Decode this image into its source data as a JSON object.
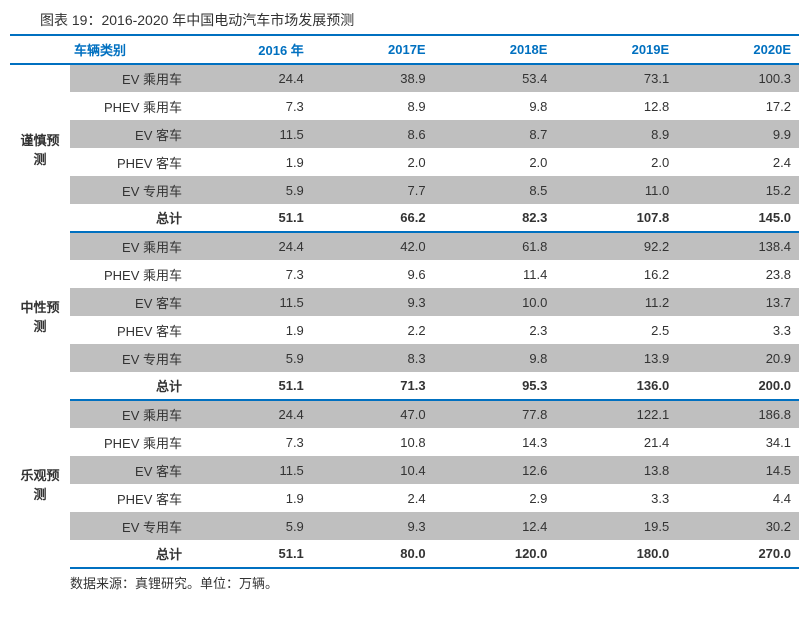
{
  "title": "图表 19：2016-2020 年中国电动汽车市场发展预测",
  "source": "数据来源：真锂研究。单位：万辆。",
  "header_color": "#0070c0",
  "alt_row_color": "#bfbfbf",
  "columns": [
    "车辆类别",
    "2016 年",
    "2017E",
    "2018E",
    "2019E",
    "2020E"
  ],
  "sections": [
    {
      "name": "谨慎预测",
      "rows": [
        {
          "label": "EV 乘用车",
          "values": [
            "24.4",
            "38.9",
            "53.4",
            "73.1",
            "100.3"
          ],
          "alt": true
        },
        {
          "label": "PHEV 乘用车",
          "values": [
            "7.3",
            "8.9",
            "9.8",
            "12.8",
            "17.2"
          ],
          "alt": false
        },
        {
          "label": "EV 客车",
          "values": [
            "11.5",
            "8.6",
            "8.7",
            "8.9",
            "9.9"
          ],
          "alt": true
        },
        {
          "label": "PHEV 客车",
          "values": [
            "1.9",
            "2.0",
            "2.0",
            "2.0",
            "2.4"
          ],
          "alt": false
        },
        {
          "label": "EV 专用车",
          "values": [
            "5.9",
            "7.7",
            "8.5",
            "11.0",
            "15.2"
          ],
          "alt": true
        }
      ],
      "total": {
        "label": "总计",
        "values": [
          "51.1",
          "66.2",
          "82.3",
          "107.8",
          "145.0"
        ]
      }
    },
    {
      "name": "中性预测",
      "rows": [
        {
          "label": "EV 乘用车",
          "values": [
            "24.4",
            "42.0",
            "61.8",
            "92.2",
            "138.4"
          ],
          "alt": true
        },
        {
          "label": "PHEV 乘用车",
          "values": [
            "7.3",
            "9.6",
            "11.4",
            "16.2",
            "23.8"
          ],
          "alt": false
        },
        {
          "label": "EV 客车",
          "values": [
            "11.5",
            "9.3",
            "10.0",
            "11.2",
            "13.7"
          ],
          "alt": true
        },
        {
          "label": "PHEV 客车",
          "values": [
            "1.9",
            "2.2",
            "2.3",
            "2.5",
            "3.3"
          ],
          "alt": false
        },
        {
          "label": "EV 专用车",
          "values": [
            "5.9",
            "8.3",
            "9.8",
            "13.9",
            "20.9"
          ],
          "alt": true
        }
      ],
      "total": {
        "label": "总计",
        "values": [
          "51.1",
          "71.3",
          "95.3",
          "136.0",
          "200.0"
        ]
      }
    },
    {
      "name": "乐观预测",
      "rows": [
        {
          "label": "EV 乘用车",
          "values": [
            "24.4",
            "47.0",
            "77.8",
            "122.1",
            "186.8"
          ],
          "alt": true
        },
        {
          "label": "PHEV 乘用车",
          "values": [
            "7.3",
            "10.8",
            "14.3",
            "21.4",
            "34.1"
          ],
          "alt": false
        },
        {
          "label": "EV 客车",
          "values": [
            "11.5",
            "10.4",
            "12.6",
            "13.8",
            "14.5"
          ],
          "alt": true
        },
        {
          "label": "PHEV 客车",
          "values": [
            "1.9",
            "2.4",
            "2.9",
            "3.3",
            "4.4"
          ],
          "alt": false
        },
        {
          "label": "EV 专用车",
          "values": [
            "5.9",
            "9.3",
            "12.4",
            "19.5",
            "30.2"
          ],
          "alt": true
        }
      ],
      "total": {
        "label": "总计",
        "values": [
          "51.1",
          "80.0",
          "120.0",
          "180.0",
          "270.0"
        ]
      }
    }
  ]
}
